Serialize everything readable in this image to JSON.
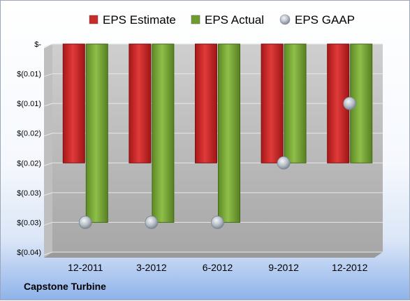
{
  "caption": "Capstone Turbine",
  "colors": {
    "estimate": "#c92a2a",
    "actual": "#6f9c2f",
    "gaap": "#a9b2bc",
    "plot_top": "#cfcfcf",
    "plot_bottom": "#a7a7a7",
    "grid": "#e8e8e8"
  },
  "chart_data": {
    "type": "bar",
    "categories": [
      "12-2011",
      "3-2012",
      "6-2012",
      "9-2012",
      "12-2012"
    ],
    "series": [
      {
        "name": "EPS Estimate",
        "kind": "bar",
        "values": [
          -0.02,
          -0.02,
          -0.02,
          -0.02,
          -0.02
        ]
      },
      {
        "name": "EPS Actual",
        "kind": "bar",
        "values": [
          -0.03,
          -0.03,
          -0.03,
          -0.02,
          -0.02
        ]
      },
      {
        "name": "EPS GAAP",
        "kind": "marker",
        "values": [
          -0.03,
          -0.03,
          -0.03,
          -0.02,
          -0.01
        ]
      }
    ],
    "y_ticks": [
      {
        "value": 0,
        "label": "$-"
      },
      {
        "value": -0.005,
        "label": "$(0.01)"
      },
      {
        "value": -0.01,
        "label": "$(0.01)"
      },
      {
        "value": -0.015,
        "label": "$(0.02)"
      },
      {
        "value": -0.02,
        "label": "$(0.02)"
      },
      {
        "value": -0.025,
        "label": "$(0.03)"
      },
      {
        "value": -0.03,
        "label": "$(0.03)"
      },
      {
        "value": -0.035,
        "label": "$(0.04)"
      }
    ],
    "ylim": [
      -0.035,
      0
    ],
    "grid": true,
    "legend": "top"
  }
}
